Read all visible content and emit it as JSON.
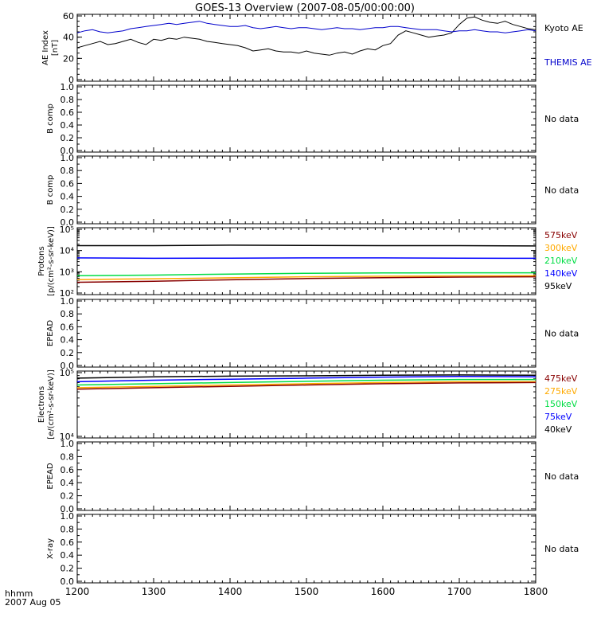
{
  "title": "GOES-13 Overview (2007-08-05/00:00:00)",
  "footer": {
    "line1": "hhmm",
    "line2": "2007 Aug 05"
  },
  "time_axis": {
    "range": [
      1200,
      1800
    ],
    "ticks": [
      1200,
      1300,
      1400,
      1500,
      1600,
      1700,
      1800
    ],
    "tick_labels": [
      "1200",
      "1300",
      "1400",
      "1500",
      "1600",
      "1700",
      "1800"
    ]
  },
  "colors": {
    "axis": "#000000",
    "kyoto": "#000000",
    "themis": "#0000cc",
    "ch_black": "#000000",
    "ch_blue": "#0000ff",
    "ch_green": "#00dd44",
    "ch_orange": "#ffaa00",
    "ch_darkred": "#880000"
  },
  "chart_data": [
    {
      "type": "line",
      "panel": "ae",
      "ylabel": [
        "AE Index",
        "[nT]"
      ],
      "ylim": [
        0,
        60
      ],
      "yticks": [
        0,
        20,
        40,
        60
      ],
      "ytick_labels": [
        "0",
        "20",
        "40",
        "60"
      ],
      "x": [
        1200,
        1210,
        1220,
        1230,
        1240,
        1250,
        1260,
        1270,
        1280,
        1290,
        1300,
        1310,
        1320,
        1330,
        1340,
        1350,
        1360,
        1370,
        1380,
        1390,
        1400,
        1410,
        1420,
        1430,
        1440,
        1450,
        1460,
        1470,
        1480,
        1490,
        1500,
        1510,
        1520,
        1530,
        1540,
        1550,
        1560,
        1570,
        1580,
        1590,
        1600,
        1610,
        1620,
        1630,
        1640,
        1650,
        1660,
        1670,
        1680,
        1690,
        1700,
        1710,
        1720,
        1730,
        1740,
        1750,
        1760,
        1770,
        1780,
        1790,
        1800
      ],
      "series": [
        {
          "name": "Kyoto AE",
          "color_key": "kyoto",
          "values": [
            30,
            32,
            34,
            36,
            33,
            34,
            36,
            38,
            35,
            33,
            38,
            37,
            39,
            38,
            40,
            39,
            38,
            36,
            35,
            34,
            33,
            32,
            30,
            27,
            28,
            29,
            27,
            26,
            26,
            25,
            27,
            25,
            24,
            23,
            25,
            26,
            24,
            27,
            29,
            28,
            32,
            34,
            42,
            46,
            44,
            42,
            40,
            41,
            42,
            44,
            52,
            58,
            59,
            56,
            54,
            53,
            55,
            52,
            50,
            48,
            47
          ]
        },
        {
          "name": "THEMIS AE",
          "color_key": "themis",
          "values": [
            44,
            46,
            47,
            45,
            44,
            45,
            46,
            48,
            49,
            50,
            51,
            52,
            53,
            52,
            53,
            54,
            55,
            53,
            52,
            51,
            50,
            50,
            51,
            49,
            48,
            49,
            50,
            49,
            48,
            49,
            49,
            48,
            47,
            48,
            49,
            48,
            48,
            47,
            48,
            49,
            49,
            50,
            50,
            49,
            48,
            47,
            47,
            47,
            46,
            45,
            46,
            46,
            47,
            46,
            45,
            45,
            44,
            45,
            46,
            47,
            46
          ]
        }
      ]
    },
    {
      "type": "line",
      "panel": "protons",
      "ylabel": [
        "Protons",
        "[p/(cm²-s-sr-keV)]"
      ],
      "scale": "log",
      "ylim": [
        100,
        100000
      ],
      "yticks": [
        100,
        1000,
        10000,
        100000
      ],
      "ytick_labels": [
        "10²",
        "10³",
        "10⁴",
        "10⁵"
      ],
      "x": [
        1200,
        1300,
        1400,
        1500,
        1600,
        1700,
        1800
      ],
      "series": [
        {
          "name": "95keV",
          "color_key": "ch_black",
          "values": [
            17000,
            17000,
            18000,
            17500,
            17000,
            17000,
            16500
          ]
        },
        {
          "name": "140keV",
          "color_key": "ch_blue",
          "values": [
            4500,
            4300,
            4400,
            4500,
            4500,
            4400,
            4300
          ]
        },
        {
          "name": "210keV",
          "color_key": "ch_green",
          "values": [
            650,
            700,
            780,
            850,
            880,
            900,
            900
          ]
        },
        {
          "name": "300keV",
          "color_key": "ch_orange",
          "values": [
            430,
            470,
            520,
            580,
            620,
            640,
            650
          ]
        },
        {
          "name": "575keV",
          "color_key": "ch_darkred",
          "values": [
            320,
            360,
            420,
            480,
            530,
            560,
            580
          ]
        }
      ]
    },
    {
      "type": "line",
      "panel": "electrons",
      "ylabel": [
        "Electrons",
        "[e/(cm²-s-sr-keV)]"
      ],
      "scale": "log",
      "ylim": [
        10000,
        100000
      ],
      "yticks": [
        10000,
        100000
      ],
      "ytick_labels": [
        "10⁴",
        "10⁵"
      ],
      "x": [
        1200,
        1300,
        1400,
        1500,
        1600,
        1700,
        1800
      ],
      "series": [
        {
          "name": "40keV",
          "color_key": "ch_black",
          "values": [
            82000,
            86000,
            88000,
            89000,
            91000,
            92000,
            91000
          ]
        },
        {
          "name": "75keV",
          "color_key": "ch_blue",
          "values": [
            72000,
            76000,
            79000,
            82000,
            85000,
            87000,
            86000
          ]
        },
        {
          "name": "150keV",
          "color_key": "ch_green",
          "values": [
            64000,
            67000,
            70000,
            73000,
            76000,
            78000,
            78000
          ]
        },
        {
          "name": "275keV",
          "color_key": "ch_orange",
          "values": [
            58000,
            61000,
            64000,
            67000,
            70000,
            72000,
            72000
          ]
        },
        {
          "name": "475keV",
          "color_key": "ch_darkred",
          "values": [
            55000,
            58000,
            61000,
            64000,
            67000,
            69000,
            70000
          ]
        }
      ]
    }
  ],
  "empty_panels": {
    "yticks": [
      0,
      0.2,
      0.4,
      0.6,
      0.8,
      1.0
    ],
    "ytick_labels": [
      "0.0",
      "0.2",
      "0.4",
      "0.6",
      "0.8",
      "1.0"
    ],
    "no_data_text": "No data",
    "labels": {
      "bcomp1": "B comp",
      "bcomp2": "B comp",
      "epead1": "EPEAD",
      "epead2": "EPEAD",
      "xray": "X-ray"
    }
  }
}
